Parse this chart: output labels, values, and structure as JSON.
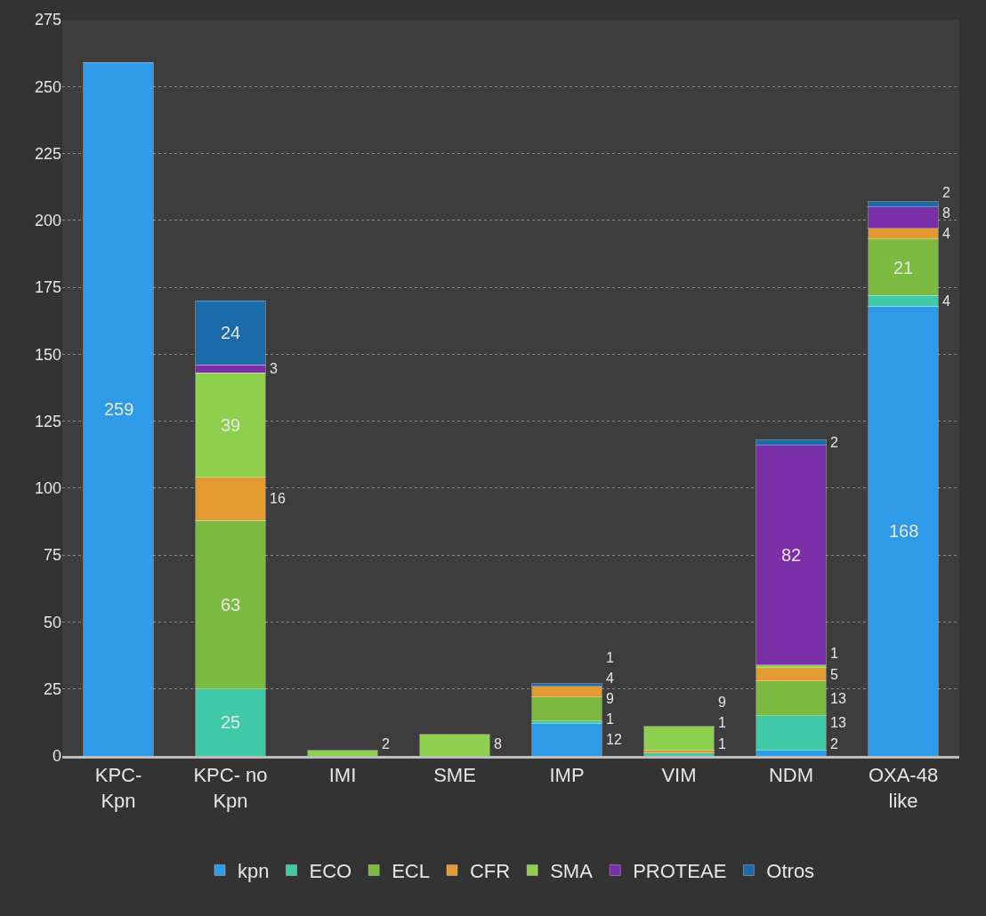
{
  "chart_data": {
    "type": "bar",
    "stacked": true,
    "data_labels": true,
    "legend": "bottom",
    "grid": "y",
    "categories": [
      "KPC-\nKpn",
      "KPC- no\nKpn",
      "IMI",
      "SME",
      "IMP",
      "VIM",
      "NDM",
      "OXA-48\nlike"
    ],
    "ylim": [
      0,
      275
    ],
    "yticks": [
      0,
      25,
      50,
      75,
      100,
      125,
      150,
      175,
      200,
      225,
      250,
      275
    ],
    "series": [
      {
        "name": "kpn",
        "color": "#2f9be8",
        "values": [
          259,
          null,
          null,
          null,
          12,
          null,
          2,
          168
        ]
      },
      {
        "name": "ECO",
        "color": "#3fc9a8",
        "values": [
          null,
          25,
          null,
          null,
          1,
          1,
          13,
          4
        ]
      },
      {
        "name": "ECL",
        "color": "#7cba42",
        "values": [
          null,
          63,
          null,
          null,
          9,
          null,
          13,
          21
        ]
      },
      {
        "name": "CFR",
        "color": "#e39a30",
        "values": [
          null,
          16,
          null,
          null,
          4,
          1,
          5,
          4
        ]
      },
      {
        "name": "SMA",
        "color": "#8fcf4e",
        "values": [
          null,
          39,
          2,
          8,
          null,
          9,
          1,
          null
        ]
      },
      {
        "name": "PROTEAE",
        "color": "#7a2fa8",
        "values": [
          null,
          3,
          null,
          null,
          null,
          null,
          82,
          8
        ]
      },
      {
        "name": "Otros",
        "color": "#1b6aaa",
        "values": [
          null,
          24,
          null,
          null,
          1,
          null,
          2,
          2
        ]
      }
    ]
  }
}
